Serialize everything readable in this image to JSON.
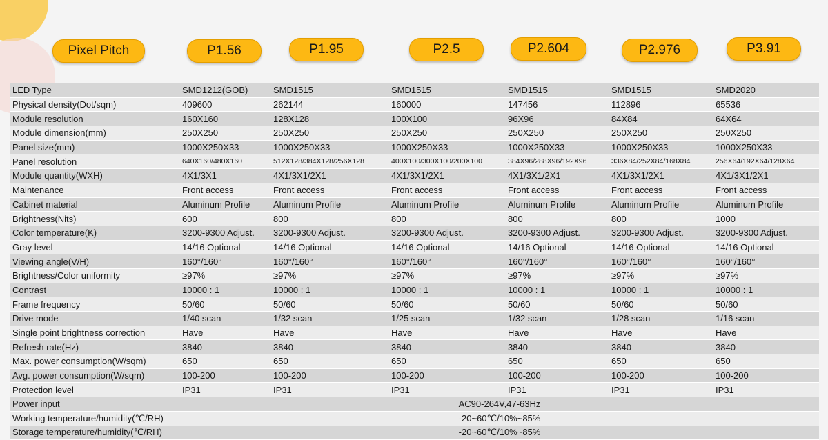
{
  "header": {
    "label": "Pixel Pitch",
    "pitches": [
      "P1.56",
      "P1.95",
      "P2.5",
      "P2.604",
      "P2.976",
      "P3.91"
    ]
  },
  "rows": [
    {
      "label": "LED Type",
      "values": [
        "SMD1212(GOB)",
        "SMD1515",
        "SMD1515",
        "SMD1515",
        "SMD1515",
        "SMD2020"
      ]
    },
    {
      "label": "Physical density(Dot/sqm)",
      "values": [
        "409600",
        "262144",
        "160000",
        "147456",
        "112896",
        "65536"
      ]
    },
    {
      "label": "Module resolution",
      "values": [
        "160X160",
        "128X128",
        "100X100",
        "96X96",
        "84X84",
        "64X64"
      ]
    },
    {
      "label": "Module dimension(mm)",
      "values": [
        "250X250",
        "250X250",
        "250X250",
        "250X250",
        "250X250",
        "250X250"
      ]
    },
    {
      "label": "Panel size(mm)",
      "values": [
        "1000X250X33",
        "1000X250X33",
        "1000X250X33",
        "1000X250X33",
        "1000X250X33",
        "1000X250X33"
      ]
    },
    {
      "label": "Panel resolution",
      "small": true,
      "values": [
        "640X160/480X160",
        "512X128/384X128/256X128",
        "400X100/300X100/200X100",
        "384X96/288X96/192X96",
        "336X84/252X84/168X84",
        "256X64/192X64/128X64"
      ]
    },
    {
      "label": "Module quantity(WXH)",
      "values": [
        "4X1/3X1",
        "4X1/3X1/2X1",
        "4X1/3X1/2X1",
        "4X1/3X1/2X1",
        "4X1/3X1/2X1",
        "4X1/3X1/2X1"
      ]
    },
    {
      "label": "Maintenance",
      "values": [
        "Front access",
        "Front access",
        "Front access",
        "Front access",
        "Front access",
        "Front access"
      ]
    },
    {
      "label": "Cabinet material",
      "values": [
        "Aluminum Profile",
        "Aluminum Profile",
        "Aluminum Profile",
        "Aluminum Profile",
        "Aluminum Profile",
        "Aluminum Profile"
      ]
    },
    {
      "label": "Brightness(Nits)",
      "values": [
        "600",
        "800",
        "800",
        "800",
        "800",
        "1000"
      ]
    },
    {
      "label": "Color temperature(K)",
      "values": [
        "3200-9300 Adjust.",
        "3200-9300 Adjust.",
        "3200-9300 Adjust.",
        "3200-9300 Adjust.",
        "3200-9300 Adjust.",
        "3200-9300 Adjust."
      ]
    },
    {
      "label": "Gray level",
      "values": [
        "14/16 Optional",
        "14/16 Optional",
        "14/16 Optional",
        "14/16 Optional",
        "14/16 Optional",
        "14/16 Optional"
      ]
    },
    {
      "label": "Viewing angle(V/H)",
      "values": [
        "160°/160°",
        "160°/160°",
        "160°/160°",
        "160°/160°",
        "160°/160°",
        "160°/160°"
      ]
    },
    {
      "label": "Brightness/Color uniformity",
      "values": [
        "≥97%",
        "≥97%",
        "≥97%",
        "≥97%",
        "≥97%",
        "≥97%"
      ]
    },
    {
      "label": "Contrast",
      "values": [
        "10000 : 1",
        "10000 : 1",
        "10000 : 1",
        "10000 : 1",
        "10000 : 1",
        "10000 : 1"
      ]
    },
    {
      "label": "Frame frequency",
      "values": [
        "50/60",
        "50/60",
        "50/60",
        "50/60",
        "50/60",
        "50/60"
      ]
    },
    {
      "label": "Drive mode",
      "values": [
        "1/40 scan",
        "1/32 scan",
        "1/25 scan",
        "1/32 scan",
        "1/28 scan",
        "1/16 scan"
      ]
    },
    {
      "label": "Single point brightness correction",
      "values": [
        "Have",
        "Have",
        "Have",
        "Have",
        "Have",
        "Have"
      ]
    },
    {
      "label": "Refresh rate(Hz)",
      "values": [
        "3840",
        "3840",
        "3840",
        "3840",
        "3840",
        "3840"
      ]
    },
    {
      "label": "Max. power consumption(W/sqm)",
      "values": [
        "650",
        "650",
        "650",
        "650",
        "650",
        "650"
      ]
    },
    {
      "label": "Avg. power consumption(W/sqm)",
      "values": [
        "100-200",
        "100-200",
        "100-200",
        "100-200",
        "100-200",
        "100-200"
      ]
    },
    {
      "label": "Protection level",
      "values": [
        "IP31",
        "IP31",
        "IP31",
        "IP31",
        "IP31",
        "IP31"
      ]
    },
    {
      "label": "Power input",
      "span": "AC90-264V,47-63Hz"
    },
    {
      "label": "Working temperature/humidity(℃/RH)",
      "span": "-20~60℃/10%~85%"
    },
    {
      "label": "Storage  temperature/humidity(℃/RH)",
      "span": "-20~60℃/10%~85%"
    }
  ]
}
